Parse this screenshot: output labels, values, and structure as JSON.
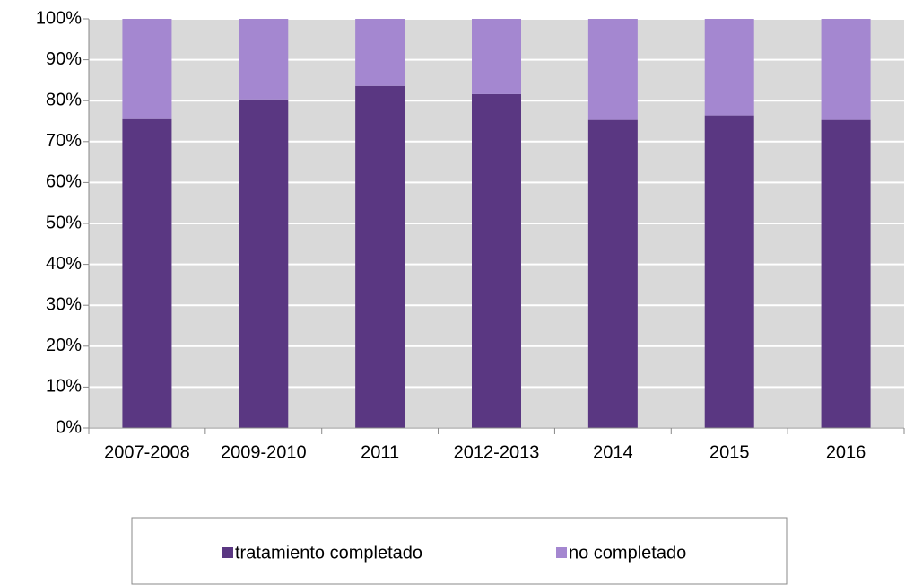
{
  "chart_data": {
    "type": "bar",
    "stacked": true,
    "categories": [
      "2007-2008",
      "2009-2010",
      "2011",
      "2012-2013",
      "2014",
      "2015",
      "2016"
    ],
    "series": [
      {
        "name": "tratamiento completado",
        "color": "#5a3782",
        "values": [
          75.5,
          80.3,
          83.6,
          81.6,
          75.3,
          76.4,
          75.3
        ]
      },
      {
        "name": "no completado",
        "color": "#a487d0",
        "values": [
          24.5,
          19.7,
          16.4,
          18.4,
          24.7,
          23.6,
          24.7
        ]
      }
    ],
    "ylim": [
      0,
      100
    ],
    "yticks": [
      {
        "value": 0,
        "label": "0%"
      },
      {
        "value": 10,
        "label": "10%"
      },
      {
        "value": 20,
        "label": "20%"
      },
      {
        "value": 30,
        "label": "30%"
      },
      {
        "value": 40,
        "label": "40%"
      },
      {
        "value": 50,
        "label": "50%"
      },
      {
        "value": 60,
        "label": "60%"
      },
      {
        "value": 70,
        "label": "70%"
      },
      {
        "value": 80,
        "label": "80%"
      },
      {
        "value": 90,
        "label": "90%"
      },
      {
        "value": 100,
        "label": "100%"
      }
    ],
    "grid": true,
    "legend": "bottom"
  }
}
